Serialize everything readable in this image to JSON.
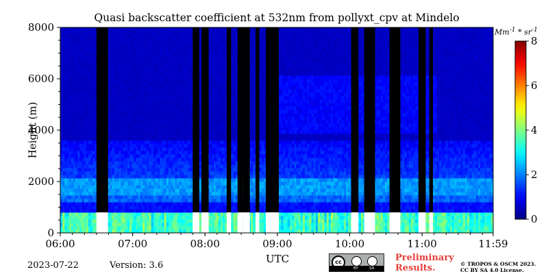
{
  "chart_data": {
    "type": "heatmap",
    "title": "Quasi backscatter coefficient at 532nm from pollyxt_cpv at Mindelo",
    "xlabel": "UTC",
    "ylabel": "Height (m)",
    "x_ticks": [
      "06:00",
      "07:00",
      "08:00",
      "09:00",
      "10:00",
      "11:00",
      "11:59"
    ],
    "x_tick_hours": [
      6.0,
      7.0,
      8.0,
      9.0,
      10.0,
      11.0,
      11.983
    ],
    "xlim": [
      6.0,
      11.983
    ],
    "y_ticks": [
      0,
      2000,
      4000,
      6000,
      8000
    ],
    "ylim": [
      0,
      8000
    ],
    "colorbar": {
      "label": "Mm^-1 * sr^-1",
      "label_html": "Mm<sup>-1</sup> * sr<sup>-1</sup>",
      "ticks": [
        0,
        2,
        4,
        6,
        8
      ],
      "range": [
        0,
        8
      ],
      "colormap": "jet"
    },
    "no_signal_intervals_utc": [
      [
        6.5,
        6.66
      ],
      [
        7.83,
        7.92
      ],
      [
        7.95,
        8.05
      ],
      [
        8.3,
        8.36
      ],
      [
        8.45,
        8.52
      ],
      [
        8.52,
        8.62
      ],
      [
        8.7,
        8.75
      ],
      [
        8.84,
        9.02
      ],
      [
        10.02,
        10.12
      ],
      [
        10.2,
        10.35
      ],
      [
        10.55,
        10.7
      ],
      [
        10.95,
        11.05
      ],
      [
        11.1,
        11.15
      ]
    ],
    "layers_m": {
      "surface_layer_top": 800,
      "aerosol_layer_1": 1800,
      "aerosol_layer_2": 2400
    }
  },
  "footer": {
    "date": "2023-07-22",
    "version": "Version: 3.6",
    "preliminary": [
      "Preliminary",
      "Results."
    ],
    "license_lines": [
      "© TROPOS & OSCM 2023.",
      "CC BY SA 4.0 License."
    ],
    "badge_texts": [
      "cc",
      "BY",
      "SA"
    ]
  }
}
